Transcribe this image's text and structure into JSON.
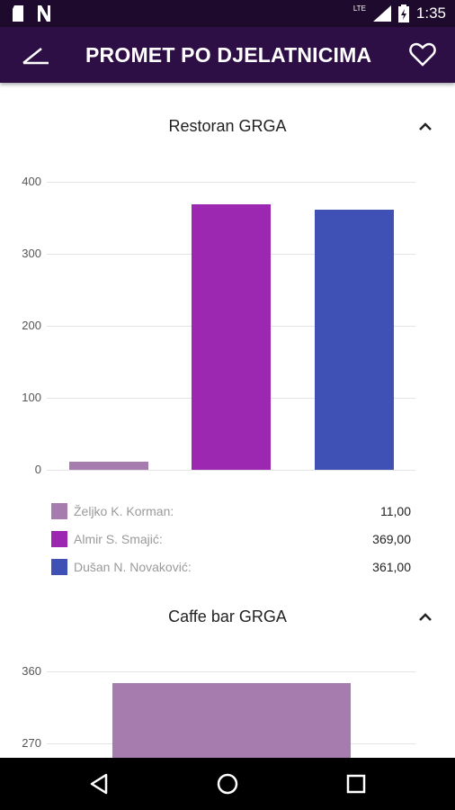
{
  "status_bar": {
    "time": "1:35",
    "network": "LTE",
    "icons": [
      "sd-card-icon",
      "n-notification-icon",
      "lte-signal-icon",
      "battery-icon"
    ]
  },
  "app_bar": {
    "title": "PROMET PO DJELATNICIMA",
    "back_icon": "back-icon",
    "favorite_icon": "heart-icon"
  },
  "sections": [
    {
      "title": "Restoran GRGA",
      "expanded": true,
      "legend": [
        {
          "name": "Željko K. Korman:",
          "value": "11,00",
          "color": "#a67caf"
        },
        {
          "name": "Almir S. Smajić:",
          "value": "369,00",
          "color": "#9c27b0"
        },
        {
          "name": "Dušan N. Novaković:",
          "value": "361,00",
          "color": "#3f51b5"
        }
      ]
    },
    {
      "title": "Caffe bar GRGA",
      "expanded": true
    }
  ],
  "chart_data": [
    {
      "type": "bar",
      "title": "Restoran GRGA",
      "categories": [
        "Željko K. Korman",
        "Almir S. Smajić",
        "Dušan N. Novaković"
      ],
      "values": [
        11,
        369,
        361
      ],
      "colors": [
        "#a67caf",
        "#9c27b0",
        "#3f51b5"
      ],
      "ylim": [
        0,
        400
      ],
      "yticks": [
        0,
        100,
        200,
        300,
        400
      ],
      "grid": true
    },
    {
      "type": "bar",
      "title": "Caffe bar GRGA",
      "categories": [
        ""
      ],
      "values": [
        345
      ],
      "colors": [
        "#a67caf"
      ],
      "yticks": [
        270,
        360
      ],
      "grid": true
    }
  ],
  "nav_bar": {
    "buttons": [
      "back-triangle-icon",
      "home-circle-icon",
      "recents-square-icon"
    ]
  }
}
